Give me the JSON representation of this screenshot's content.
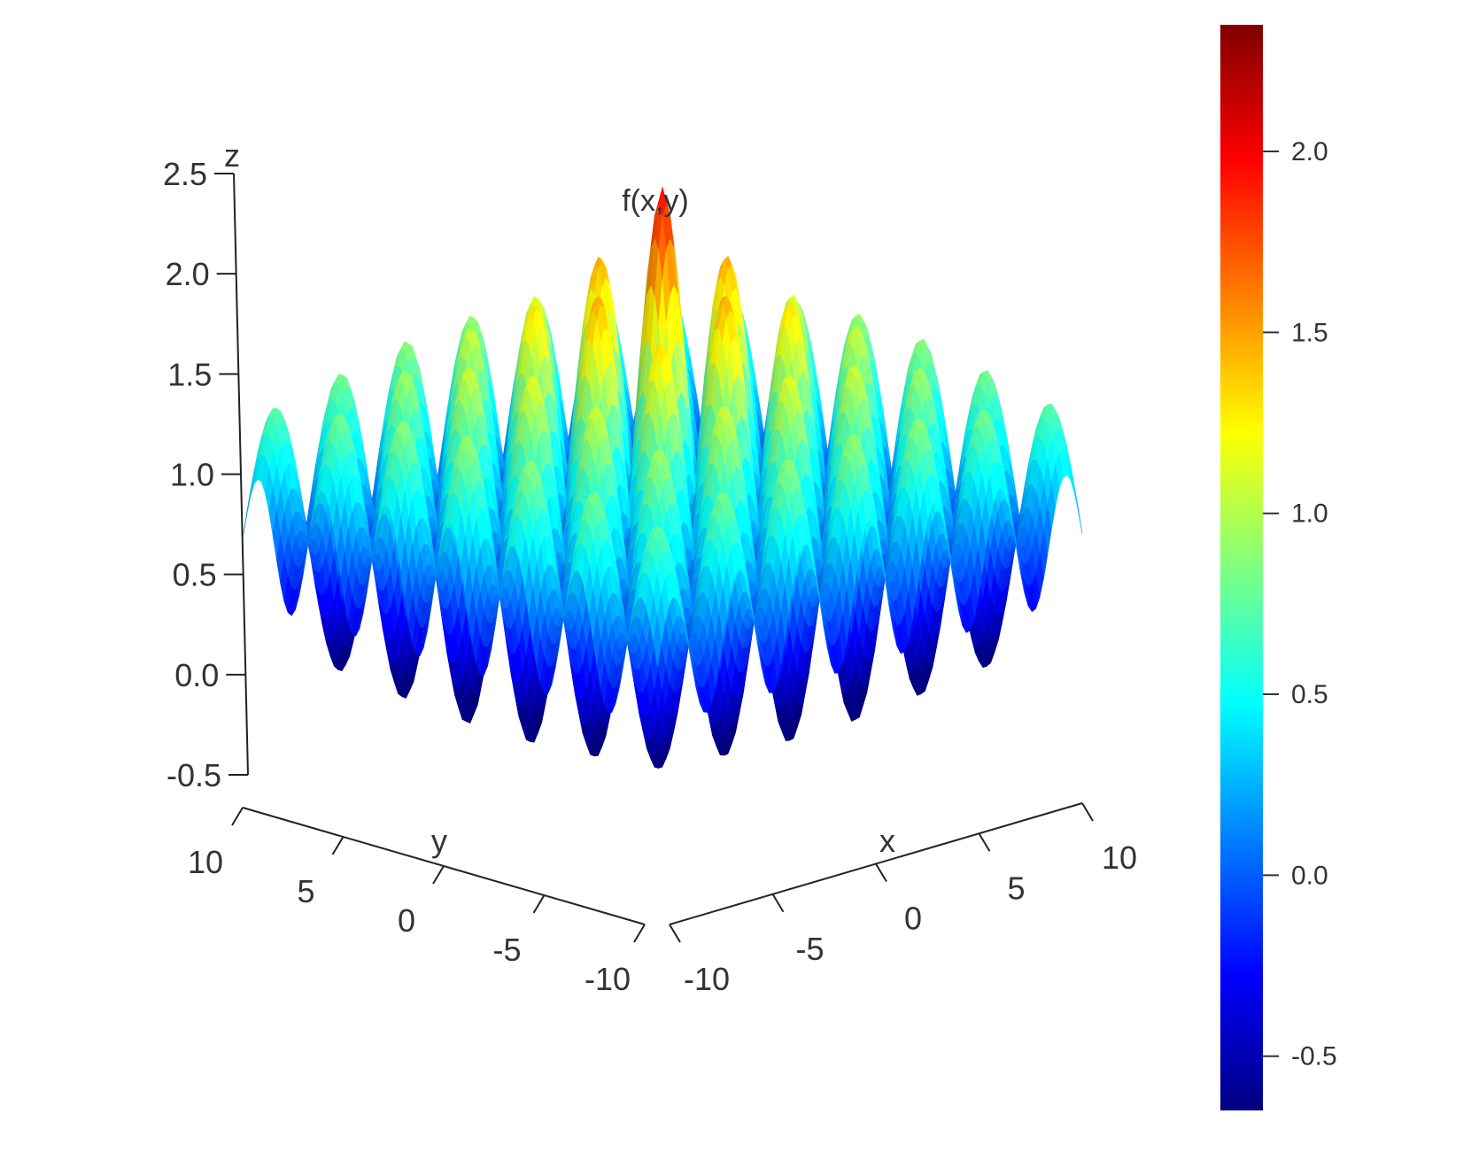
{
  "chart_data": {
    "type": "surface3d",
    "title": "f(x,y)",
    "xlabel": "x",
    "ylabel": "y",
    "zlabel": "z",
    "x_range": [
      -10,
      10
    ],
    "y_range": [
      -10,
      10
    ],
    "z_range": [
      -0.5,
      2.5
    ],
    "x_ticks": [
      {
        "value": -10,
        "label": "-10"
      },
      {
        "value": -5,
        "label": "-5"
      },
      {
        "value": 0,
        "label": "0"
      },
      {
        "value": 5,
        "label": "5"
      },
      {
        "value": 10,
        "label": "10"
      }
    ],
    "y_ticks": [
      {
        "value": 10,
        "label": "10"
      },
      {
        "value": 5,
        "label": "5"
      },
      {
        "value": 0,
        "label": "0"
      },
      {
        "value": -5,
        "label": "-5"
      },
      {
        "value": -10,
        "label": "-10"
      }
    ],
    "z_ticks": [
      {
        "value": 2.5,
        "label": "2.5"
      },
      {
        "value": 2.0,
        "label": "2.0"
      },
      {
        "value": 1.5,
        "label": "1.5"
      },
      {
        "value": 1.0,
        "label": "1.0"
      },
      {
        "value": 0.5,
        "label": "0.5"
      },
      {
        "value": 0.0,
        "label": "0.0"
      },
      {
        "value": -0.5,
        "label": "-0.5"
      }
    ],
    "surface": {
      "description_peak_max": 2.2,
      "valley_min": -0.6,
      "ridges_per_axis": 14
    },
    "colorbar": {
      "range": [
        -0.65,
        2.35
      ],
      "ticks": [
        {
          "value": 2.0,
          "label": "2.0"
        },
        {
          "value": 1.5,
          "label": "1.5"
        },
        {
          "value": 1.0,
          "label": "1.0"
        },
        {
          "value": 0.5,
          "label": "0.5"
        },
        {
          "value": 0.0,
          "label": "0.0"
        },
        {
          "value": -0.5,
          "label": "-0.5"
        }
      ],
      "colors": [
        "#00007f",
        "#0000ff",
        "#007fff",
        "#00ffff",
        "#7fff7f",
        "#ffff00",
        "#ff7f00",
        "#ff0000",
        "#7f0000"
      ]
    },
    "grid": false,
    "legend": "colorbar-right"
  }
}
